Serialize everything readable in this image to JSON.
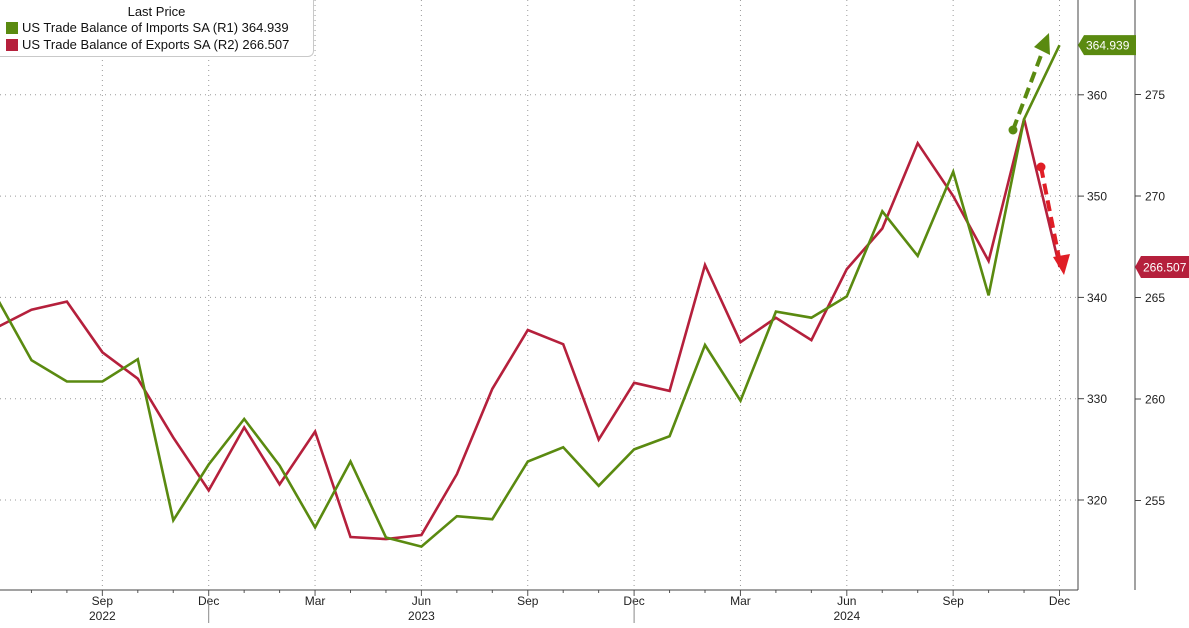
{
  "chart_data": {
    "type": "line",
    "legend": {
      "title": "Last Price",
      "entries": [
        {
          "label": "US Trade Balance of Imports SA  (R1) 364.939",
          "color": "#5a8a10"
        },
        {
          "label": "US Trade Balance of Exports SA  (R2) 266.507",
          "color": "#b5203c"
        }
      ]
    },
    "x": [
      "2022-06",
      "2022-07",
      "2022-08",
      "2022-09",
      "2022-10",
      "2022-11",
      "2022-12",
      "2023-01",
      "2023-02",
      "2023-03",
      "2023-04",
      "2023-05",
      "2023-06",
      "2023-07",
      "2023-08",
      "2023-09",
      "2023-10",
      "2023-11",
      "2023-12",
      "2024-01",
      "2024-02",
      "2024-03",
      "2024-04",
      "2024-05",
      "2024-06",
      "2024-07",
      "2024-08",
      "2024-09",
      "2024-10",
      "2024-11",
      "2024-12"
    ],
    "x_ticks": {
      "months": [
        "Sep",
        "Dec",
        "Mar",
        "Jun",
        "Sep",
        "Dec",
        "Mar",
        "Jun",
        "Sep",
        "Dec"
      ],
      "years": [
        "2022",
        "2023",
        "2024"
      ]
    },
    "series": [
      {
        "name": "US Trade Balance of Imports SA",
        "axis": "R1",
        "color": "#5a8a10",
        "last_value": "364.939",
        "values": [
          340.1,
          333.8,
          331.7,
          331.7,
          333.9,
          318.0,
          323.5,
          328.0,
          323.4,
          317.3,
          323.8,
          316.3,
          315.4,
          318.4,
          318.1,
          323.8,
          325.2,
          321.4,
          325.0,
          326.3,
          335.3,
          329.8,
          338.6,
          338.0,
          340.1,
          348.5,
          344.1,
          352.4,
          340.2,
          357.6,
          364.9
        ]
      },
      {
        "name": "US Trade Balance of Exports SA",
        "axis": "R2",
        "color": "#b5203c",
        "last_value": "266.507",
        "values": [
          263.5,
          264.4,
          264.8,
          262.3,
          261.0,
          258.1,
          255.5,
          258.6,
          255.8,
          258.4,
          253.2,
          253.1,
          253.3,
          256.3,
          260.5,
          263.4,
          262.7,
          258.0,
          260.8,
          260.4,
          266.6,
          262.8,
          264.0,
          262.9,
          266.4,
          268.4,
          272.6,
          270.0,
          266.8,
          273.8,
          266.5
        ]
      }
    ],
    "axes": {
      "R1": {
        "ylim": [
          311,
          365.5
        ],
        "ticks": [
          320,
          330,
          340,
          350,
          360
        ]
      },
      "R2": {
        "ylim": [
          250,
          281
        ],
        "ticks": [
          255,
          260,
          265,
          270,
          275,
          280
        ]
      }
    },
    "grid": true,
    "legend_position": "top-left",
    "annotations": [
      {
        "type": "dashed-arrow",
        "direction": "up",
        "color": "#5a8a10"
      },
      {
        "type": "dashed-arrow",
        "direction": "down",
        "color": "#e01e26"
      }
    ]
  }
}
